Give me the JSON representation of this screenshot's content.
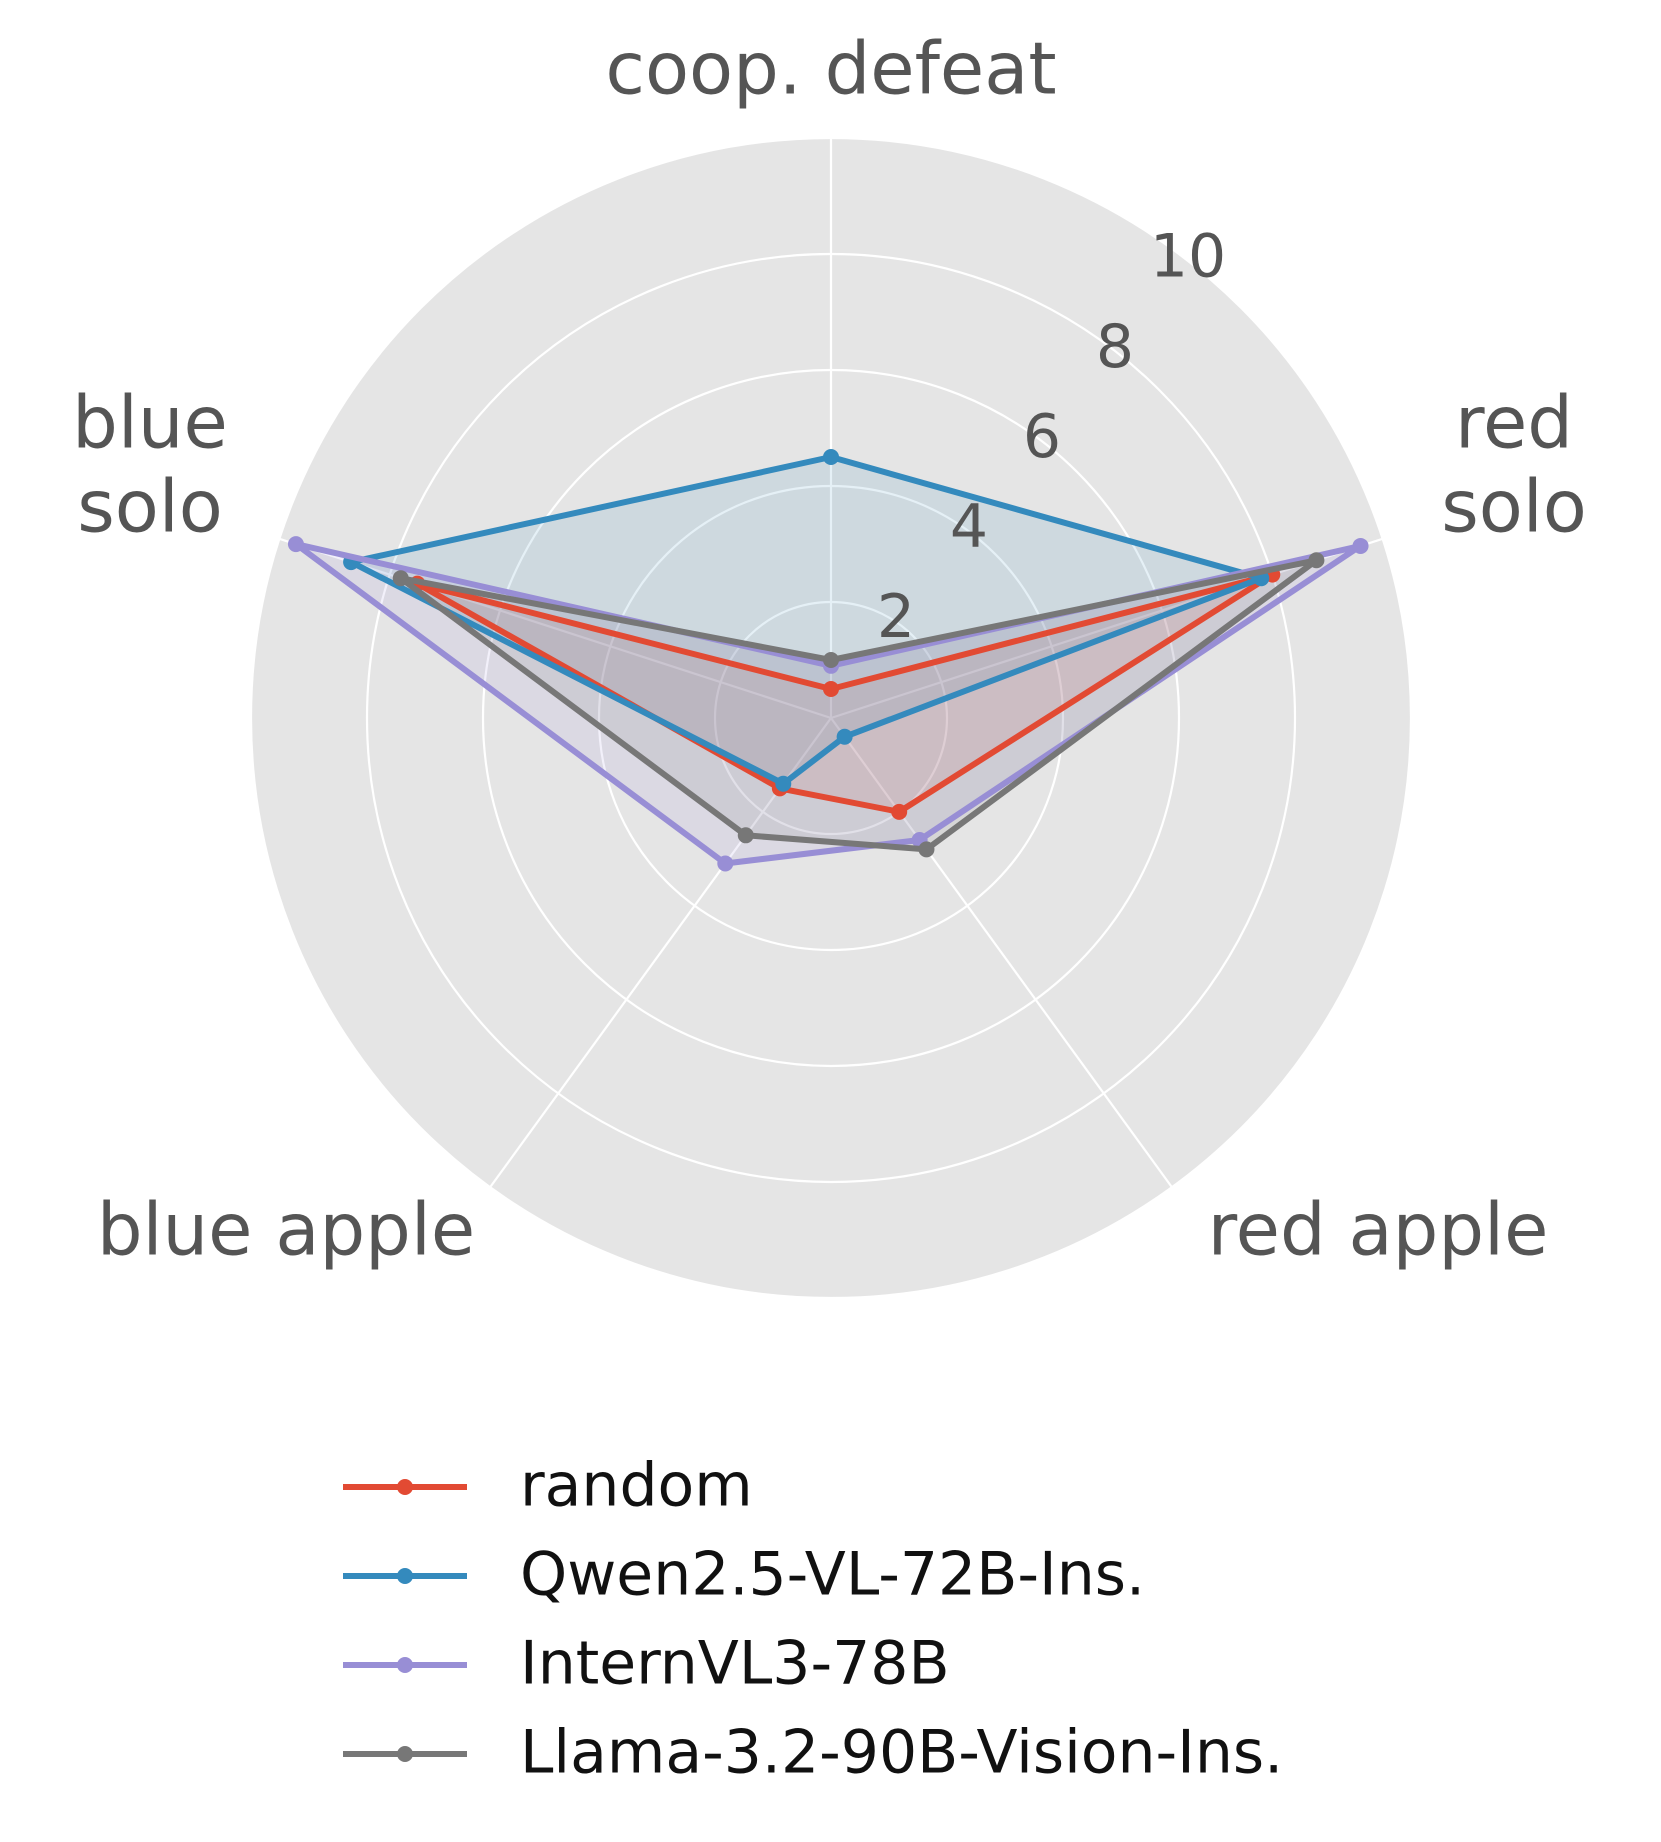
{
  "chart_data": {
    "type": "radar",
    "axes": [
      {
        "label_lines": [
          "coop. defeat"
        ]
      },
      {
        "label_lines": [
          "red",
          "solo"
        ]
      },
      {
        "label_lines": [
          "red apple"
        ]
      },
      {
        "label_lines": [
          "blue apple"
        ]
      },
      {
        "label_lines": [
          "blue",
          "solo"
        ]
      }
    ],
    "r_ticks": [
      "2",
      "4",
      "6",
      "8",
      "10"
    ],
    "r_range": [
      0,
      10
    ],
    "grid": true,
    "legend_position": "bottom",
    "series": [
      {
        "name": "random",
        "color": "#E24A33",
        "values": [
          0.5,
          8.0,
          2.0,
          1.5,
          7.5
        ]
      },
      {
        "name": "Qwen2.5-VL-72B-Ins.",
        "color": "#348ABD",
        "values": [
          4.5,
          7.8,
          0.4,
          1.4,
          8.7
        ]
      },
      {
        "name": "InternVL3-78B",
        "color": "#988ED5",
        "values": [
          0.9,
          9.6,
          2.6,
          3.1,
          9.7
        ]
      },
      {
        "name": "Llama-3.2-90B-Vision-Ins.",
        "color": "#777777",
        "values": [
          1.0,
          8.8,
          2.8,
          2.5,
          7.8
        ]
      }
    ]
  }
}
